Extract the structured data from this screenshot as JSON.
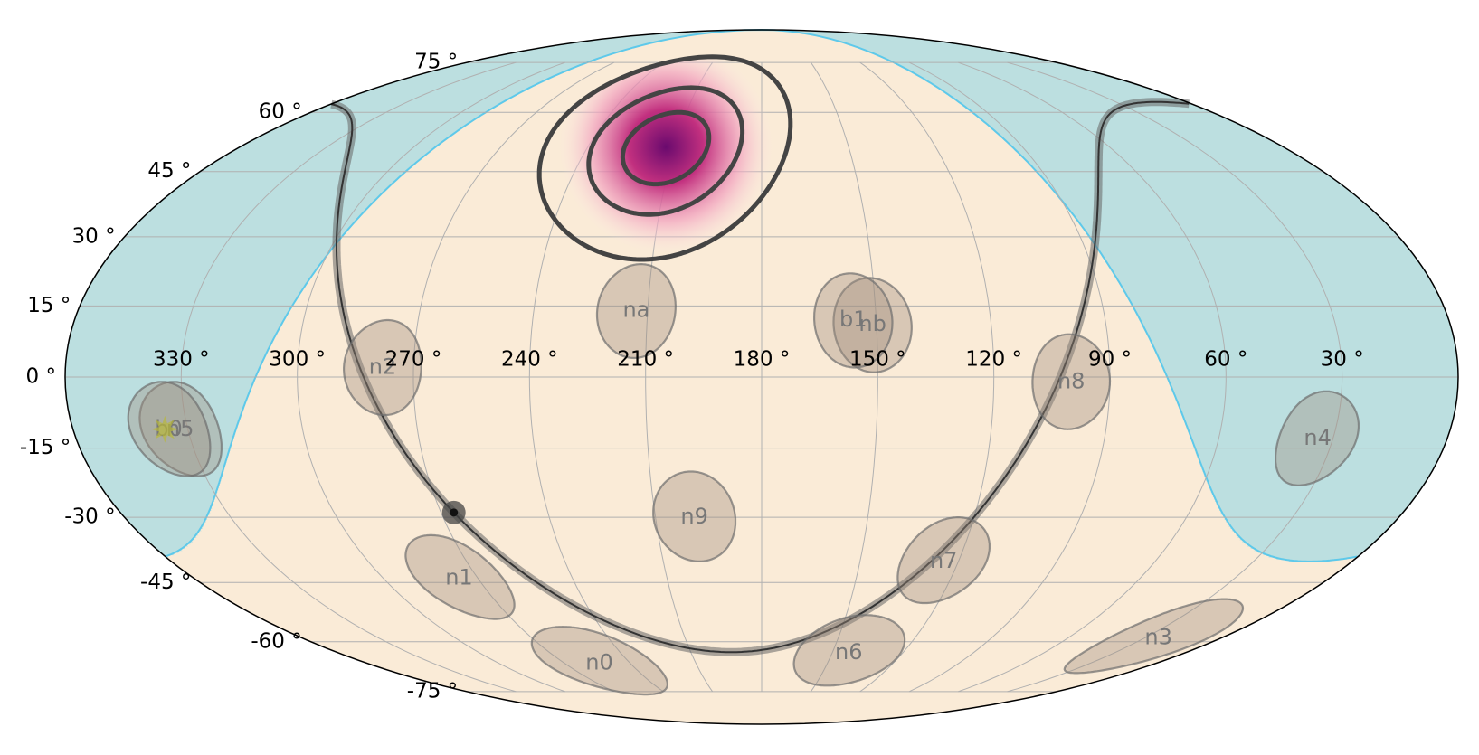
{
  "chart_data": {
    "type": "skymap",
    "projection": "mollweide",
    "xticks": [
      {
        "value": 330,
        "label": "330 °"
      },
      {
        "value": 300,
        "label": "300 °"
      },
      {
        "value": 270,
        "label": "270 °"
      },
      {
        "value": 240,
        "label": "240 °"
      },
      {
        "value": 210,
        "label": "210 °"
      },
      {
        "value": 180,
        "label": "180 °"
      },
      {
        "value": 150,
        "label": "150 °"
      },
      {
        "value": 120,
        "label": "120 °"
      },
      {
        "value": 90,
        "label": "90 °"
      },
      {
        "value": 60,
        "label": "60 °"
      },
      {
        "value": 30,
        "label": "30 °"
      }
    ],
    "yticks": [
      {
        "value": -75,
        "label": "-75 °"
      },
      {
        "value": -60,
        "label": "-60 °"
      },
      {
        "value": -45,
        "label": "-45 °"
      },
      {
        "value": -30,
        "label": "-30 °"
      },
      {
        "value": -15,
        "label": "-15 °"
      },
      {
        "value": 0,
        "label": "0 °"
      },
      {
        "value": 15,
        "label": "15 °"
      },
      {
        "value": 30,
        "label": "30 °"
      },
      {
        "value": 45,
        "label": "45 °"
      },
      {
        "value": 60,
        "label": "60 °"
      },
      {
        "value": 75,
        "label": "75 °"
      }
    ],
    "grid": true,
    "colors": {
      "sky": "#faebd7",
      "earth": "#bcdfe0",
      "earth_edge": "#5ec9ea",
      "detector": "#a08f7e",
      "plane": "#333333",
      "contour": "#444444",
      "localization": "#6a0a6e",
      "sun": "#b8b83a"
    },
    "earth": {
      "lon": 13,
      "lat": 25,
      "radius": 65
    },
    "detector_radius": 10,
    "detectors": [
      {
        "name": "n0",
        "lon": 254,
        "lat": -66
      },
      {
        "name": "n1",
        "lon": 276,
        "lat": -44
      },
      {
        "name": "n2",
        "lon": 278,
        "lat": 2
      },
      {
        "name": "n3",
        "lon": 24.5,
        "lat": -59
      },
      {
        "name": "n4",
        "lon": 34,
        "lat": -13
      },
      {
        "name": "n5",
        "lon": 332,
        "lat": -11
      },
      {
        "name": "n6",
        "lon": 143,
        "lat": -63
      },
      {
        "name": "n7",
        "lon": 124.5,
        "lat": -40
      },
      {
        "name": "n8",
        "lon": 100,
        "lat": -1
      },
      {
        "name": "n9",
        "lon": 199,
        "lat": -30
      },
      {
        "name": "na",
        "lon": 213,
        "lat": 14
      },
      {
        "name": "nb",
        "lon": 151,
        "lat": 11
      },
      {
        "name": "b0",
        "lon": 335,
        "lat": -11
      },
      {
        "name": "b1",
        "lon": 156,
        "lat": 12
      }
    ],
    "galactic_pole": {
      "lon": 192.86,
      "lat": 27.13
    },
    "galactic_center": {
      "lon": 266.4,
      "lat": -28.94
    },
    "sun": {
      "lon": 336,
      "lat": -11
    },
    "localization": {
      "lon": 213,
      "lat": 51,
      "contour_radii": [
        9,
        16,
        26
      ]
    }
  }
}
